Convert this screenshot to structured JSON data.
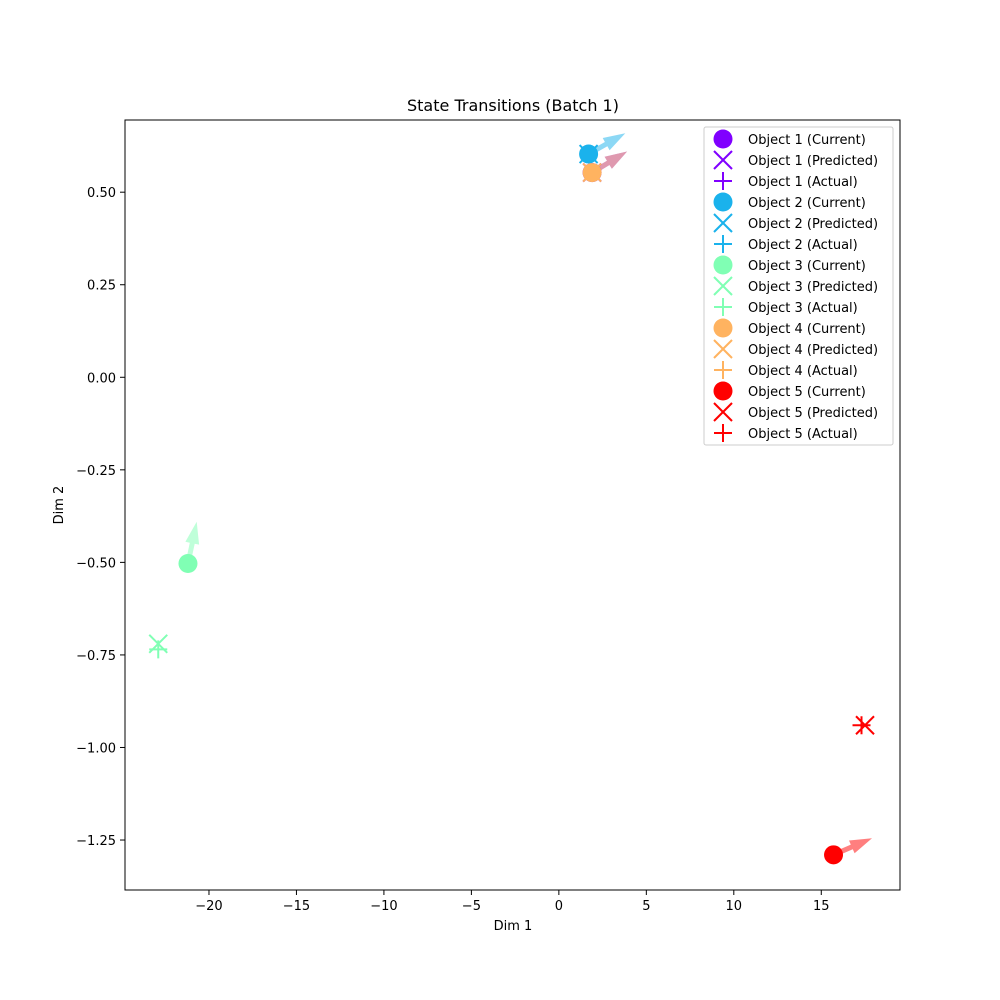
{
  "chart_data": {
    "type": "scatter",
    "title": "State Transitions (Batch 1)",
    "xlabel": "Dim 1",
    "ylabel": "Dim 2",
    "xlim": [
      -24.8,
      19.5
    ],
    "ylim": [
      -1.385,
      0.695
    ],
    "xticks": [
      {
        "value": -20,
        "label": "−20"
      },
      {
        "value": -15,
        "label": "−15"
      },
      {
        "value": -10,
        "label": "−10"
      },
      {
        "value": -5,
        "label": "−5"
      },
      {
        "value": 0,
        "label": "0"
      },
      {
        "value": 5,
        "label": "5"
      },
      {
        "value": 10,
        "label": "10"
      },
      {
        "value": 15,
        "label": "15"
      }
    ],
    "yticks": [
      {
        "value": 0.5,
        "label": "0.50"
      },
      {
        "value": 0.25,
        "label": "0.25"
      },
      {
        "value": 0.0,
        "label": "0.00"
      },
      {
        "value": -0.25,
        "label": "−0.25"
      },
      {
        "value": -0.5,
        "label": "−0.50"
      },
      {
        "value": -0.75,
        "label": "−0.75"
      },
      {
        "value": -1.0,
        "label": "−1.00"
      },
      {
        "value": -1.25,
        "label": "−1.25"
      }
    ],
    "grid": false,
    "legend_position": "top-right",
    "objects": [
      {
        "name": "Object 1",
        "color": "#8000ff",
        "legend_current": "Object 1 (Current)",
        "legend_predicted": "Object 1 (Predicted)",
        "legend_actual": "Object 1 (Actual)",
        "current": [
          1.9,
          0.553
        ],
        "predicted": [
          1.9,
          0.553
        ],
        "actual": [
          1.9,
          0.553
        ],
        "arrow_to": [
          3.9,
          0.61
        ]
      },
      {
        "name": "Object 2",
        "color": "#1ab2ec",
        "legend_current": "Object 2 (Current)",
        "legend_predicted": "Object 2 (Predicted)",
        "legend_actual": "Object 2 (Actual)",
        "current": [
          1.7,
          0.603
        ],
        "predicted": [
          1.7,
          0.603
        ],
        "actual": [
          1.7,
          0.603
        ],
        "arrow_to": [
          3.8,
          0.659
        ]
      },
      {
        "name": "Object 3",
        "color": "#80ffb4",
        "legend_current": "Object 3 (Current)",
        "legend_predicted": "Object 3 (Predicted)",
        "legend_actual": "Object 3 (Actual)",
        "current": [
          -21.2,
          -0.503
        ],
        "predicted": [
          -22.9,
          -0.72
        ],
        "actual": [
          -22.9,
          -0.735
        ],
        "arrow_to": [
          -20.7,
          -0.39
        ]
      },
      {
        "name": "Object 4",
        "color": "#ffb360",
        "legend_current": "Object 4 (Current)",
        "legend_predicted": "Object 4 (Predicted)",
        "legend_actual": "Object 4 (Actual)",
        "current": [
          1.9,
          0.553
        ],
        "predicted": [
          1.9,
          0.553
        ],
        "actual": [
          1.9,
          0.553
        ],
        "arrow_to": [
          3.9,
          0.61
        ]
      },
      {
        "name": "Object 5",
        "color": "#ff0000",
        "legend_current": "Object 5 (Current)",
        "legend_predicted": "Object 5 (Predicted)",
        "legend_actual": "Object 5 (Actual)",
        "current": [
          15.7,
          -1.29
        ],
        "predicted": [
          17.5,
          -0.94
        ],
        "actual": [
          17.3,
          -0.94
        ],
        "arrow_to": [
          17.9,
          -1.245
        ]
      }
    ]
  }
}
